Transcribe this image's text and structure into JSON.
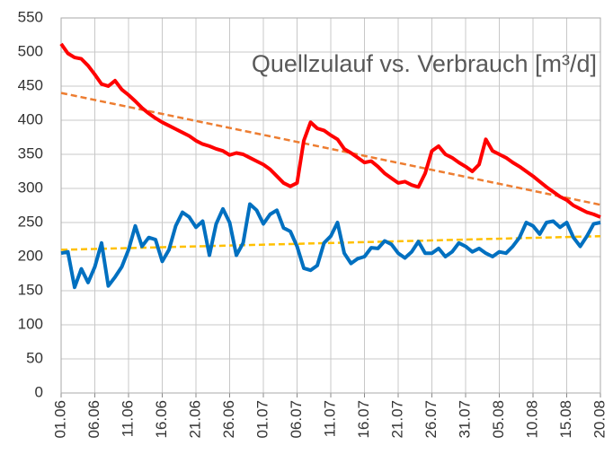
{
  "chart_data": {
    "type": "line",
    "title": "Quellzulauf vs. Verbrauch [m³/d]",
    "categories": [
      "01.06",
      null,
      null,
      null,
      null,
      "06.06",
      null,
      null,
      null,
      null,
      "11.06",
      null,
      null,
      null,
      null,
      "16.06",
      null,
      null,
      null,
      null,
      "21.06",
      null,
      null,
      null,
      null,
      "26.06",
      null,
      null,
      null,
      null,
      "01.07",
      null,
      null,
      null,
      null,
      "06.07",
      null,
      null,
      null,
      null,
      "11.07",
      null,
      null,
      null,
      null,
      "16.07",
      null,
      null,
      null,
      null,
      "21.07",
      null,
      null,
      null,
      null,
      "26.07",
      null,
      null,
      null,
      null,
      "31.07",
      null,
      null,
      null,
      null,
      "05.08",
      null,
      null,
      null,
      null,
      "10.08",
      null,
      null,
      null,
      null,
      "15.08",
      null,
      null,
      null,
      null,
      "20.08"
    ],
    "series": [
      {
        "color": "#ff0000",
        "trend": [
          440,
          276
        ],
        "trend_color": "#ed7d31",
        "values": [
          512,
          498,
          492,
          490,
          480,
          467,
          453,
          450,
          458,
          445,
          437,
          428,
          418,
          410,
          403,
          397,
          392,
          387,
          382,
          377,
          370,
          365,
          362,
          358,
          355,
          349,
          352,
          350,
          345,
          340,
          335,
          328,
          318,
          308,
          303,
          308,
          370,
          397,
          388,
          385,
          378,
          372,
          358,
          352,
          345,
          338,
          340,
          332,
          322,
          315,
          308,
          310,
          305,
          302,
          322,
          355,
          362,
          350,
          345,
          338,
          332,
          325,
          335,
          372,
          355,
          350,
          345,
          338,
          332,
          325,
          318,
          310,
          302,
          295,
          288,
          283,
          275,
          270,
          265,
          262,
          258
        ]
      },
      {
        "color": "#0070c0",
        "trend": [
          210,
          230
        ],
        "trend_color": "#ffc000",
        "values": [
          205,
          207,
          155,
          182,
          162,
          185,
          220,
          157,
          170,
          185,
          210,
          245,
          215,
          228,
          225,
          193,
          210,
          245,
          265,
          258,
          243,
          252,
          202,
          248,
          270,
          250,
          202,
          220,
          277,
          268,
          248,
          262,
          268,
          242,
          237,
          215,
          183,
          180,
          187,
          220,
          230,
          250,
          205,
          190,
          197,
          200,
          213,
          212,
          223,
          218,
          205,
          198,
          207,
          222,
          205,
          205,
          212,
          200,
          207,
          220,
          215,
          207,
          212,
          205,
          200,
          207,
          205,
          215,
          228,
          250,
          245,
          233,
          250,
          252,
          243,
          250,
          228,
          215,
          230,
          248,
          250
        ]
      }
    ],
    "ylim": [
      0,
      550
    ],
    "yticks": [
      0,
      50,
      100,
      150,
      200,
      250,
      300,
      350,
      400,
      450,
      500,
      550
    ],
    "grid": true
  }
}
